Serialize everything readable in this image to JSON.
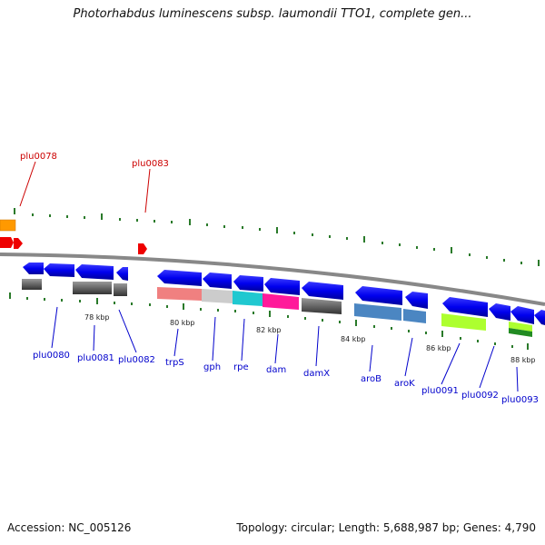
{
  "title": "Photorhabdus luminescens subsp. laumondii TTO1, complete gen...",
  "footer": {
    "accession": "Accession: NC_005126",
    "summary": "Topology: circular; Length: 5,688,987 bp; Genes: 4,790"
  },
  "ticks": [
    {
      "label": "78 kbp",
      "kbp": 78
    },
    {
      "label": "80 kbp",
      "kbp": 80
    },
    {
      "label": "82 kbp",
      "kbp": 82
    },
    {
      "label": "84 kbp",
      "kbp": 84
    },
    {
      "label": "86 kbp",
      "kbp": 86
    },
    {
      "label": "88 kbp",
      "kbp": 88
    }
  ],
  "genes_outer": [
    {
      "name": "plu0078",
      "color": "#cc0000"
    },
    {
      "name": "plu0083",
      "color": "#cc0000"
    }
  ],
  "genes_inner": [
    {
      "name": "plu0080"
    },
    {
      "name": "plu0081"
    },
    {
      "name": "plu0082"
    },
    {
      "name": "trpS"
    },
    {
      "name": "gph"
    },
    {
      "name": "rpe"
    },
    {
      "name": "dam"
    },
    {
      "name": "damX"
    },
    {
      "name": "aroB"
    },
    {
      "name": "aroK"
    },
    {
      "name": "plu0091"
    },
    {
      "name": "plu0092"
    },
    {
      "name": "plu0093"
    }
  ],
  "colors": {
    "cds_arrow": "#0000ee",
    "orange_feature": "#ff9900",
    "red_feature": "#ee0000",
    "backbone": "#888888",
    "tick": "#2a7a2a"
  }
}
